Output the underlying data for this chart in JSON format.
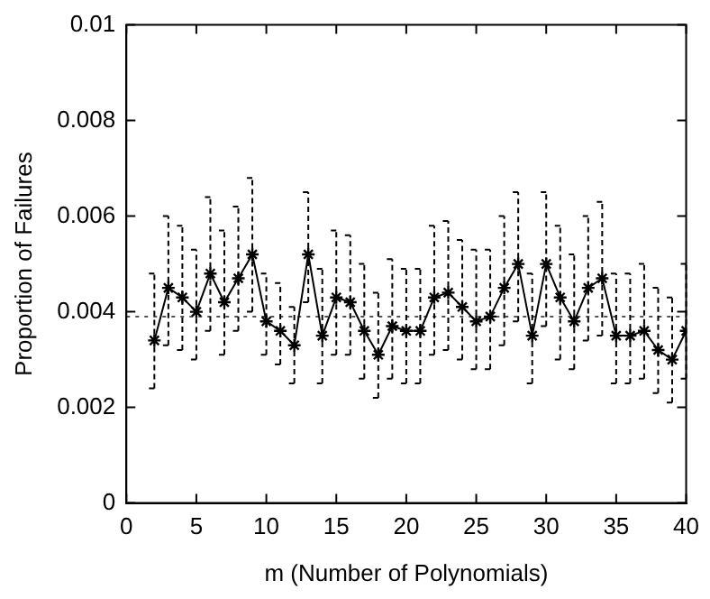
{
  "chart_data": {
    "type": "line",
    "xlabel": "m (Number of Polynomials)",
    "ylabel": "Proportion of Failures",
    "x": [
      2,
      3,
      4,
      5,
      6,
      7,
      8,
      9,
      10,
      11,
      12,
      13,
      14,
      15,
      16,
      17,
      18,
      19,
      20,
      21,
      22,
      23,
      24,
      25,
      26,
      27,
      28,
      29,
      30,
      31,
      32,
      33,
      34,
      35,
      36,
      37,
      38,
      39,
      40
    ],
    "series": [
      {
        "color": "#000000",
        "values": [
          0.0034,
          0.0045,
          0.0043,
          0.004,
          0.0048,
          0.0042,
          0.0047,
          0.0052,
          0.0038,
          0.0036,
          0.0033,
          0.0052,
          0.0035,
          0.0043,
          0.0042,
          0.0036,
          0.0031,
          0.0037,
          0.0036,
          0.0036,
          0.0043,
          0.0044,
          0.0041,
          0.0038,
          0.0039,
          0.0045,
          0.005,
          0.0035,
          0.005,
          0.0043,
          0.0038,
          0.0045,
          0.0047,
          0.0035,
          0.0035,
          0.0036,
          0.0032,
          0.003,
          0.0036
        ],
        "errors": [
          [
            0.0024,
            0.0048
          ],
          [
            0.0033,
            0.006
          ],
          [
            0.0032,
            0.0058
          ],
          [
            0.003,
            0.0053
          ],
          [
            0.0036,
            0.0064
          ],
          [
            0.0031,
            0.0057
          ],
          [
            0.0036,
            0.0062
          ],
          [
            0.004,
            0.0068
          ],
          [
            0.0031,
            0.0048
          ],
          [
            0.0029,
            0.0046
          ],
          [
            0.0025,
            0.0041
          ],
          [
            0.0042,
            0.0065
          ],
          [
            0.0025,
            0.0049
          ],
          [
            0.0031,
            0.0057
          ],
          [
            0.0031,
            0.0056
          ],
          [
            0.0026,
            0.005
          ],
          [
            0.0022,
            0.0044
          ],
          [
            0.0026,
            0.0051
          ],
          [
            0.0025,
            0.0049
          ],
          [
            0.0025,
            0.0049
          ],
          [
            0.0031,
            0.0058
          ],
          [
            0.0032,
            0.0059
          ],
          [
            0.003,
            0.0055
          ],
          [
            0.0028,
            0.0053
          ],
          [
            0.0028,
            0.0053
          ],
          [
            0.0033,
            0.006
          ],
          [
            0.0038,
            0.0065
          ],
          [
            0.0025,
            0.0048
          ],
          [
            0.0037,
            0.0065
          ],
          [
            0.003,
            0.0058
          ],
          [
            0.0028,
            0.0052
          ],
          [
            0.0034,
            0.006
          ],
          [
            0.0035,
            0.0063
          ],
          [
            0.0025,
            0.0048
          ],
          [
            0.0025,
            0.0048
          ],
          [
            0.0026,
            0.005
          ],
          [
            0.0023,
            0.0045
          ],
          [
            0.0021,
            0.0043
          ],
          [
            0.0026,
            0.005
          ]
        ]
      }
    ],
    "xlim": [
      0,
      40
    ],
    "xticks": [
      0,
      5,
      10,
      15,
      20,
      25,
      30,
      35,
      40
    ],
    "ylim": [
      0,
      0.01
    ],
    "yticks": [
      0,
      0.002,
      0.004,
      0.006,
      0.008,
      0.01
    ],
    "ref_lines": [
      {
        "axis": "y",
        "value": 0.0039,
        "color": "#555555",
        "line_style": "dotted"
      }
    ],
    "grid": false,
    "legend": false,
    "marker": "cross",
    "line_style": "solid"
  }
}
